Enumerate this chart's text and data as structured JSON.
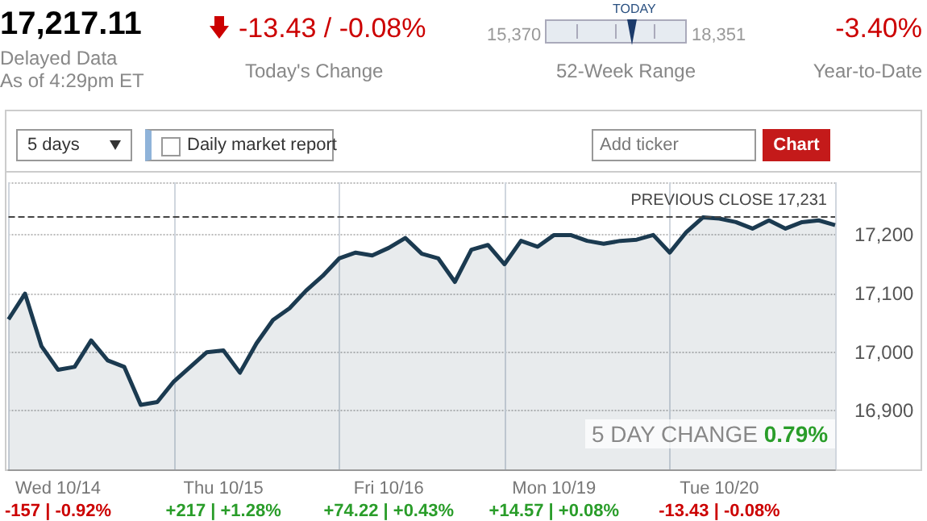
{
  "chart_data": {
    "type": "area",
    "categories": [
      null,
      null,
      null,
      "Wed 10/14",
      null,
      null,
      null,
      null,
      null,
      null,
      null,
      null,
      null,
      "Thu 10/15",
      null,
      null,
      null,
      null,
      null,
      null,
      null,
      null,
      null,
      "Fri 10/16",
      null,
      null,
      null,
      null,
      null,
      null,
      null,
      null,
      null,
      "Mon 10/19",
      null,
      null,
      null,
      null,
      null,
      null,
      null,
      null,
      null,
      "Tue 10/20",
      null,
      null,
      null,
      null,
      null,
      null,
      null
    ],
    "series": [
      {
        "color": "#1b3a50",
        "values": [
          17056,
          17100,
          17010,
          16970,
          16975,
          17020,
          16986,
          16975,
          16910,
          16915,
          16950,
          16975,
          17000,
          17003,
          16965,
          17015,
          17055,
          17075,
          17105,
          17130,
          17160,
          17170,
          17165,
          17178,
          17195,
          17168,
          17160,
          17120,
          17175,
          17183,
          17150,
          17190,
          17180,
          17200,
          17200,
          17190,
          17185,
          17190,
          17192,
          17200,
          17170,
          17205,
          17230,
          17228,
          17222,
          17211,
          17225,
          17211,
          17222,
          17225,
          17217
        ]
      }
    ],
    "ylim": [
      16800,
      17290
    ],
    "yticks": [
      {
        "value": 16900,
        "label": "16,900"
      },
      {
        "value": 17000,
        "label": "17,000"
      },
      {
        "value": 17100,
        "label": "17,100"
      },
      {
        "value": 17200,
        "label": "17,200"
      }
    ],
    "grid": true,
    "ref_lines": [
      {
        "axis": "y",
        "value": 17231,
        "label": "PREVIOUS CLOSE 17,231",
        "line_style": "dashed"
      }
    ],
    "annotations": [
      "17,217.11",
      "Delayed Data",
      "As of 4:29pm ET",
      "-13.43 / -0.08%",
      "Today's Change",
      "15,370",
      "TODAY",
      "18,351",
      "52-Week Range",
      "-3.40%",
      "Year-to-Date",
      "5 days",
      "Daily market report",
      "Add ticker",
      "Chart",
      "5 DAY CHANGE 0.79%",
      "-157 | -0.92%",
      "+217 | +1.28%",
      "+74.22 | +0.43%",
      "+14.57 | +0.08%",
      "-13.43 | -0.08%"
    ]
  }
}
